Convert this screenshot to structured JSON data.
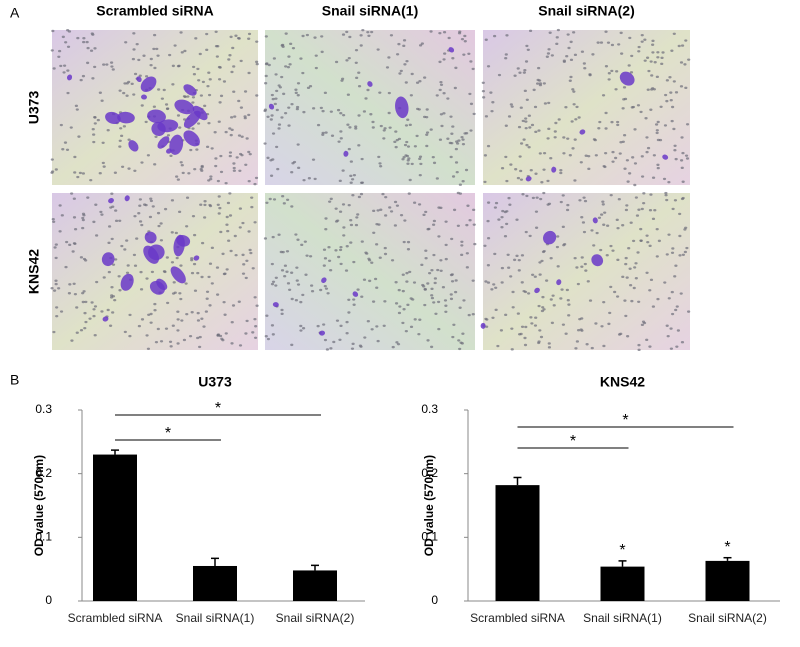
{
  "panel_a": {
    "label": "A",
    "columns": [
      "Scrambled siRNA",
      "Snail siRNA(1)",
      "Snail siRNA(2)"
    ],
    "rows": [
      "U373",
      "KNS42"
    ]
  },
  "panel_b": {
    "label": "B"
  },
  "chart_data": [
    {
      "type": "bar",
      "title": "U373",
      "y_label": "OD value (570nm)",
      "categories": [
        "Scrambled siRNA",
        "Snail siRNA(1)",
        "Snail siRNA(2)"
      ],
      "values": [
        0.23,
        0.055,
        0.048
      ],
      "errors": [
        0.007,
        0.012,
        0.008
      ],
      "color": "#000000",
      "ylim": [
        0,
        0.3
      ],
      "yticks": [
        0,
        0.1,
        0.2,
        0.3
      ],
      "comparisons": [
        {
          "pair": [
            0,
            1
          ],
          "label": "*"
        },
        {
          "pair": [
            0,
            2
          ],
          "label": "*"
        }
      ]
    },
    {
      "type": "bar",
      "title": "KNS42",
      "y_label": "OD value (570nm)",
      "categories": [
        "Scrambled siRNA",
        "Snail siRNA(1)",
        "Snail siRNA(2)"
      ],
      "values": [
        0.182,
        0.054,
        0.063
      ],
      "errors": [
        0.012,
        0.009,
        0.005
      ],
      "color": "#000000",
      "ylim": [
        0,
        0.3
      ],
      "yticks": [
        0,
        0.1,
        0.2,
        0.3
      ],
      "bar_labels": [
        null,
        "*",
        "*"
      ],
      "comparisons": [
        {
          "pair": [
            0,
            1
          ],
          "label": "*"
        },
        {
          "pair": [
            0,
            2
          ],
          "label": "*"
        }
      ]
    }
  ]
}
